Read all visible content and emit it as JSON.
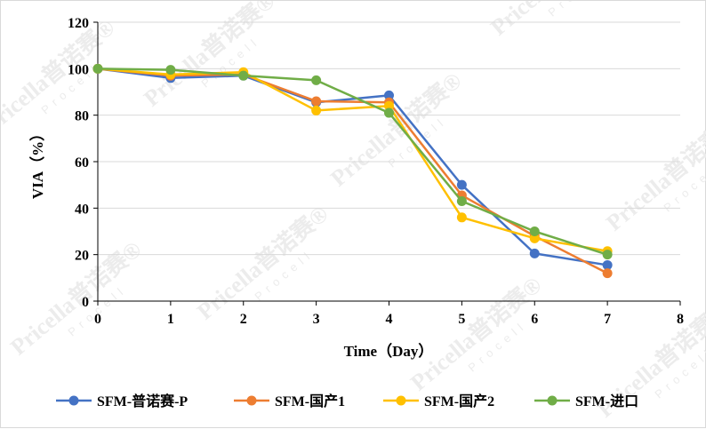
{
  "chart_data": {
    "type": "line",
    "title": "",
    "xlabel": "Time（Day）",
    "ylabel": "VIA（%）",
    "x": [
      0,
      1,
      2,
      3,
      4,
      5,
      6,
      7
    ],
    "xlim": [
      0,
      8
    ],
    "ylim": [
      0,
      120
    ],
    "xticks": [
      0,
      1,
      2,
      3,
      4,
      5,
      6,
      7,
      8
    ],
    "yticks": [
      0,
      20,
      40,
      60,
      80,
      100,
      120
    ],
    "grid": true,
    "legend_position": "bottom",
    "series": [
      {
        "name": "SFM-普诺赛-P",
        "color": "#4472C4",
        "values": [
          100,
          96,
          97,
          85.5,
          88.5,
          50,
          20.5,
          15.5
        ]
      },
      {
        "name": "SFM-国产1",
        "color": "#ED7D31",
        "values": [
          100,
          97,
          97.5,
          86,
          85.5,
          45.5,
          28,
          12
        ]
      },
      {
        "name": "SFM-国产2",
        "color": "#FFC000",
        "values": [
          100,
          97.5,
          98.5,
          82,
          84,
          36,
          27,
          21.5
        ]
      },
      {
        "name": "SFM-进口",
        "color": "#70AD47",
        "values": [
          100,
          99.5,
          97,
          95,
          81,
          43,
          30,
          20
        ]
      }
    ]
  },
  "watermark": {
    "brand": "Pricella",
    "cn": "普诺赛",
    "sub": "Procell",
    "color": "#ececec"
  }
}
